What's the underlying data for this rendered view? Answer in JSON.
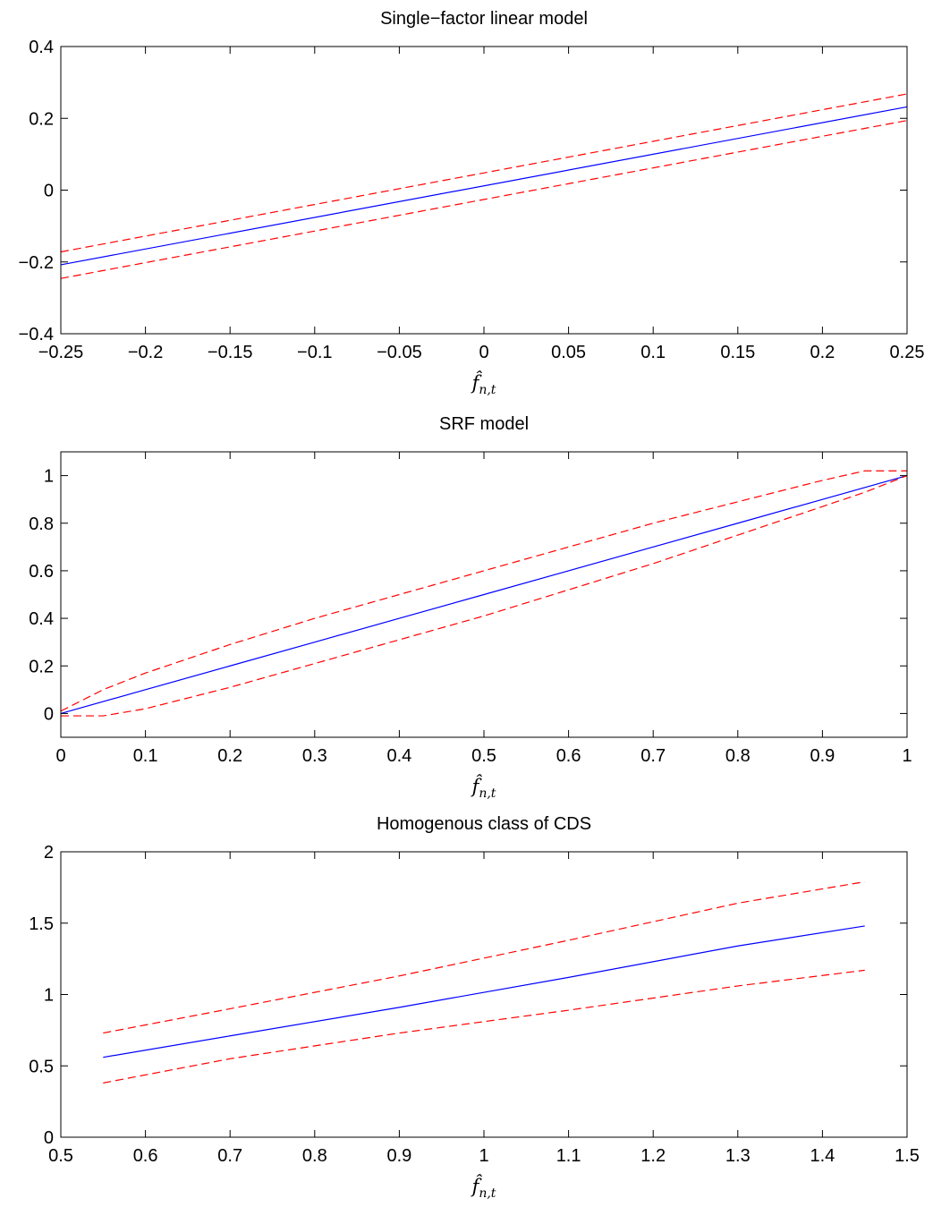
{
  "chart_data": [
    {
      "type": "line",
      "title": "Single−factor linear model",
      "xlabel": "f̂n,t",
      "ylabel": "",
      "xlim": [
        -0.25,
        0.25
      ],
      "ylim": [
        -0.4,
        0.4
      ],
      "xticks": [
        -0.25,
        -0.2,
        -0.15,
        -0.1,
        -0.05,
        0,
        0.05,
        0.1,
        0.15,
        0.2,
        0.25
      ],
      "xtick_labels": [
        "−0.25",
        "−0.2",
        "−0.15",
        "−0.1",
        "−0.05",
        "0",
        "0.05",
        "0.1",
        "0.15",
        "0.2",
        "0.25"
      ],
      "yticks": [
        -0.4,
        -0.2,
        0,
        0.2,
        0.4
      ],
      "ytick_labels": [
        "−0.4",
        "−0.2",
        "0",
        "0.2",
        "0.4"
      ],
      "grid": false,
      "series": [
        {
          "color": "#0000ff",
          "style": "solid",
          "x": [
            -0.25,
            0.25
          ],
          "y": [
            -0.208,
            0.232
          ]
        },
        {
          "color": "#ff0000",
          "style": "dashed",
          "x": [
            -0.25,
            0.25
          ],
          "y": [
            -0.172,
            0.268
          ]
        },
        {
          "color": "#ff0000",
          "style": "dashed",
          "x": [
            -0.25,
            0.25
          ],
          "y": [
            -0.246,
            0.194
          ]
        }
      ]
    },
    {
      "type": "line",
      "title": "SRF model",
      "xlabel": "f̂n,t",
      "ylabel": "",
      "xlim": [
        0,
        1
      ],
      "ylim": [
        -0.1,
        1.1
      ],
      "xticks": [
        0,
        0.1,
        0.2,
        0.3,
        0.4,
        0.5,
        0.6,
        0.7,
        0.8,
        0.9,
        1
      ],
      "xtick_labels": [
        "0",
        "0.1",
        "0.2",
        "0.3",
        "0.4",
        "0.5",
        "0.6",
        "0.7",
        "0.8",
        "0.9",
        "1"
      ],
      "yticks": [
        0,
        0.2,
        0.4,
        0.6,
        0.8,
        1
      ],
      "ytick_labels": [
        "0",
        "0.2",
        "0.4",
        "0.6",
        "0.8",
        "1"
      ],
      "grid": false,
      "series": [
        {
          "color": "#0000ff",
          "style": "solid",
          "x": [
            0,
            0.1,
            0.2,
            0.3,
            0.4,
            0.5,
            0.6,
            0.7,
            0.8,
            0.9,
            1
          ],
          "y": [
            0,
            0.1,
            0.2,
            0.3,
            0.4,
            0.5,
            0.6,
            0.7,
            0.8,
            0.9,
            1
          ]
        },
        {
          "color": "#ff0000",
          "style": "dashed",
          "x": [
            0,
            0.05,
            0.1,
            0.2,
            0.3,
            0.4,
            0.5,
            0.6,
            0.7,
            0.8,
            0.9,
            0.95,
            1
          ],
          "y": [
            0.01,
            0.1,
            0.17,
            0.29,
            0.4,
            0.5,
            0.6,
            0.7,
            0.8,
            0.89,
            0.98,
            1.02,
            1.02
          ]
        },
        {
          "color": "#ff0000",
          "style": "dashed",
          "x": [
            0,
            0.05,
            0.1,
            0.2,
            0.3,
            0.4,
            0.5,
            0.6,
            0.7,
            0.8,
            0.9,
            0.95,
            1
          ],
          "y": [
            -0.01,
            -0.01,
            0.02,
            0.11,
            0.21,
            0.31,
            0.41,
            0.52,
            0.63,
            0.75,
            0.87,
            0.93,
            1
          ]
        }
      ]
    },
    {
      "type": "line",
      "title": "Homogenous class of CDS",
      "xlabel": "f̂n,t",
      "ylabel": "",
      "xlim": [
        0.5,
        1.5
      ],
      "ylim": [
        0,
        2
      ],
      "xticks": [
        0.5,
        0.6,
        0.7,
        0.8,
        0.9,
        1,
        1.1,
        1.2,
        1.3,
        1.4,
        1.5
      ],
      "xtick_labels": [
        "0.5",
        "0.6",
        "0.7",
        "0.8",
        "0.9",
        "1",
        "1.1",
        "1.2",
        "1.3",
        "1.4",
        "1.5"
      ],
      "yticks": [
        0,
        0.5,
        1,
        1.5,
        2
      ],
      "ytick_labels": [
        "0",
        "0.5",
        "1",
        "1.5",
        "2"
      ],
      "grid": false,
      "series": [
        {
          "color": "#0000ff",
          "style": "solid",
          "x": [
            0.55,
            0.7,
            0.9,
            1.1,
            1.3,
            1.45
          ],
          "y": [
            0.56,
            0.71,
            0.91,
            1.12,
            1.34,
            1.48
          ]
        },
        {
          "color": "#ff0000",
          "style": "dashed",
          "x": [
            0.55,
            0.7,
            0.9,
            1.1,
            1.3,
            1.45
          ],
          "y": [
            0.73,
            0.9,
            1.13,
            1.38,
            1.64,
            1.79
          ]
        },
        {
          "color": "#ff0000",
          "style": "dashed",
          "x": [
            0.55,
            0.7,
            0.9,
            1.1,
            1.3,
            1.45
          ],
          "y": [
            0.38,
            0.55,
            0.73,
            0.89,
            1.06,
            1.17
          ]
        }
      ]
    }
  ]
}
